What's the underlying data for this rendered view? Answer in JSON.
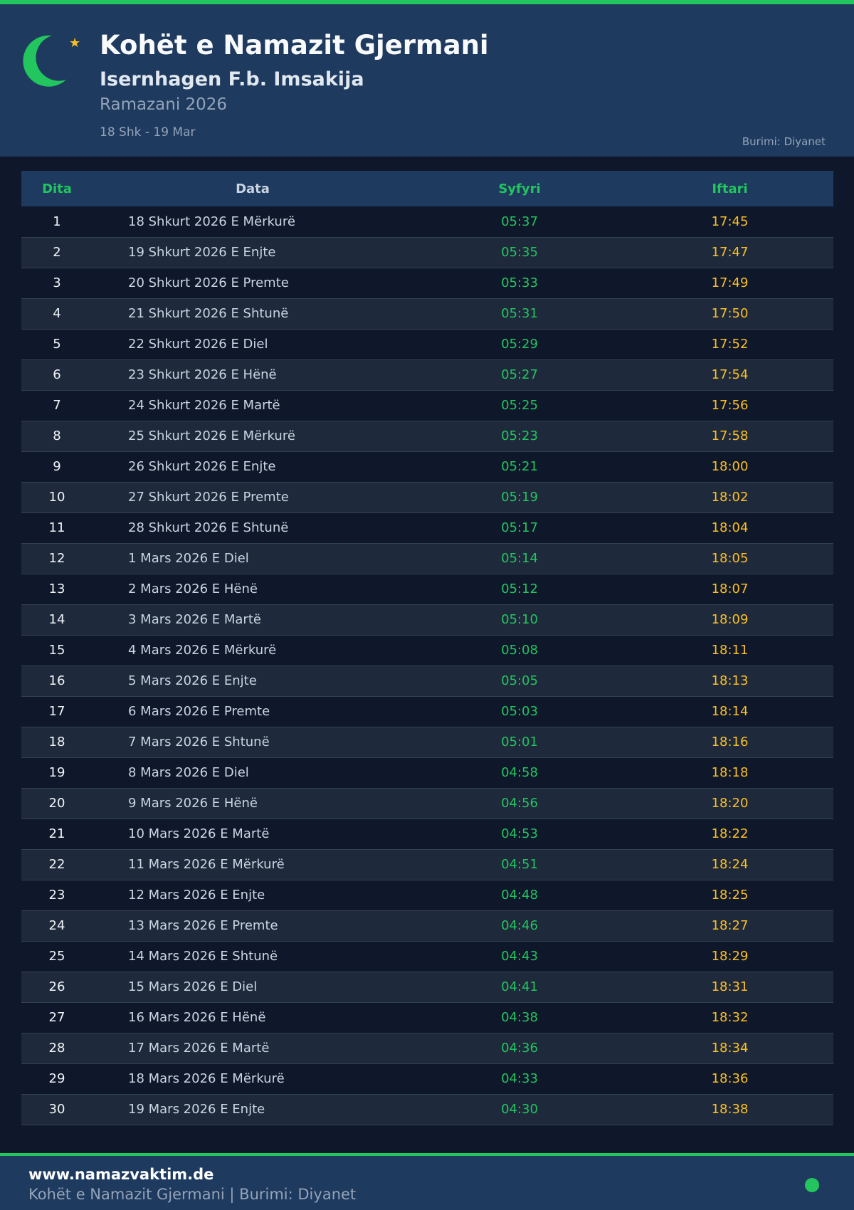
{
  "header": {
    "title": "Kohët e Namazit Gjermani",
    "subtitle": "Isernhagen F.b. Imsakija",
    "ramadan": "Ramazani 2026",
    "range": "18 Shk - 19 Mar",
    "source": "Burimi: Diyanet",
    "icons": [
      "crescent-icon",
      "star-icon"
    ]
  },
  "colors": {
    "accent": "#22c55e",
    "iftar": "#fbbf24",
    "background": "#0f172a",
    "header": "#1e3a5f"
  },
  "table": {
    "columns": [
      "Dita",
      "Data",
      "Syfyri",
      "Iftari"
    ],
    "rows": [
      [
        "1",
        "18 Shkurt 2026 E Mërkurë",
        "05:37",
        "17:45"
      ],
      [
        "2",
        "19 Shkurt 2026 E Enjte",
        "05:35",
        "17:47"
      ],
      [
        "3",
        "20 Shkurt 2026 E Premte",
        "05:33",
        "17:49"
      ],
      [
        "4",
        "21 Shkurt 2026 E Shtunë",
        "05:31",
        "17:50"
      ],
      [
        "5",
        "22 Shkurt 2026 E Diel",
        "05:29",
        "17:52"
      ],
      [
        "6",
        "23 Shkurt 2026 E Hënë",
        "05:27",
        "17:54"
      ],
      [
        "7",
        "24 Shkurt 2026 E Martë",
        "05:25",
        "17:56"
      ],
      [
        "8",
        "25 Shkurt 2026 E Mërkurë",
        "05:23",
        "17:58"
      ],
      [
        "9",
        "26 Shkurt 2026 E Enjte",
        "05:21",
        "18:00"
      ],
      [
        "10",
        "27 Shkurt 2026 E Premte",
        "05:19",
        "18:02"
      ],
      [
        "11",
        "28 Shkurt 2026 E Shtunë",
        "05:17",
        "18:04"
      ],
      [
        "12",
        "1 Mars 2026 E Diel",
        "05:14",
        "18:05"
      ],
      [
        "13",
        "2 Mars 2026 E Hënë",
        "05:12",
        "18:07"
      ],
      [
        "14",
        "3 Mars 2026 E Martë",
        "05:10",
        "18:09"
      ],
      [
        "15",
        "4 Mars 2026 E Mërkurë",
        "05:08",
        "18:11"
      ],
      [
        "16",
        "5 Mars 2026 E Enjte",
        "05:05",
        "18:13"
      ],
      [
        "17",
        "6 Mars 2026 E Premte",
        "05:03",
        "18:14"
      ],
      [
        "18",
        "7 Mars 2026 E Shtunë",
        "05:01",
        "18:16"
      ],
      [
        "19",
        "8 Mars 2026 E Diel",
        "04:58",
        "18:18"
      ],
      [
        "20",
        "9 Mars 2026 E Hënë",
        "04:56",
        "18:20"
      ],
      [
        "21",
        "10 Mars 2026 E Martë",
        "04:53",
        "18:22"
      ],
      [
        "22",
        "11 Mars 2026 E Mërkurë",
        "04:51",
        "18:24"
      ],
      [
        "23",
        "12 Mars 2026 E Enjte",
        "04:48",
        "18:25"
      ],
      [
        "24",
        "13 Mars 2026 E Premte",
        "04:46",
        "18:27"
      ],
      [
        "25",
        "14 Mars 2026 E Shtunë",
        "04:43",
        "18:29"
      ],
      [
        "26",
        "15 Mars 2026 E Diel",
        "04:41",
        "18:31"
      ],
      [
        "27",
        "16 Mars 2026 E Hënë",
        "04:38",
        "18:32"
      ],
      [
        "28",
        "17 Mars 2026 E Martë",
        "04:36",
        "18:34"
      ],
      [
        "29",
        "18 Mars 2026 E Mërkurë",
        "04:33",
        "18:36"
      ],
      [
        "30",
        "19 Mars 2026 E Enjte",
        "04:30",
        "18:38"
      ]
    ]
  },
  "footer": {
    "site": "www.namazvaktim.de",
    "text": "Kohët e Namazit Gjermani | Burimi: Diyanet"
  }
}
